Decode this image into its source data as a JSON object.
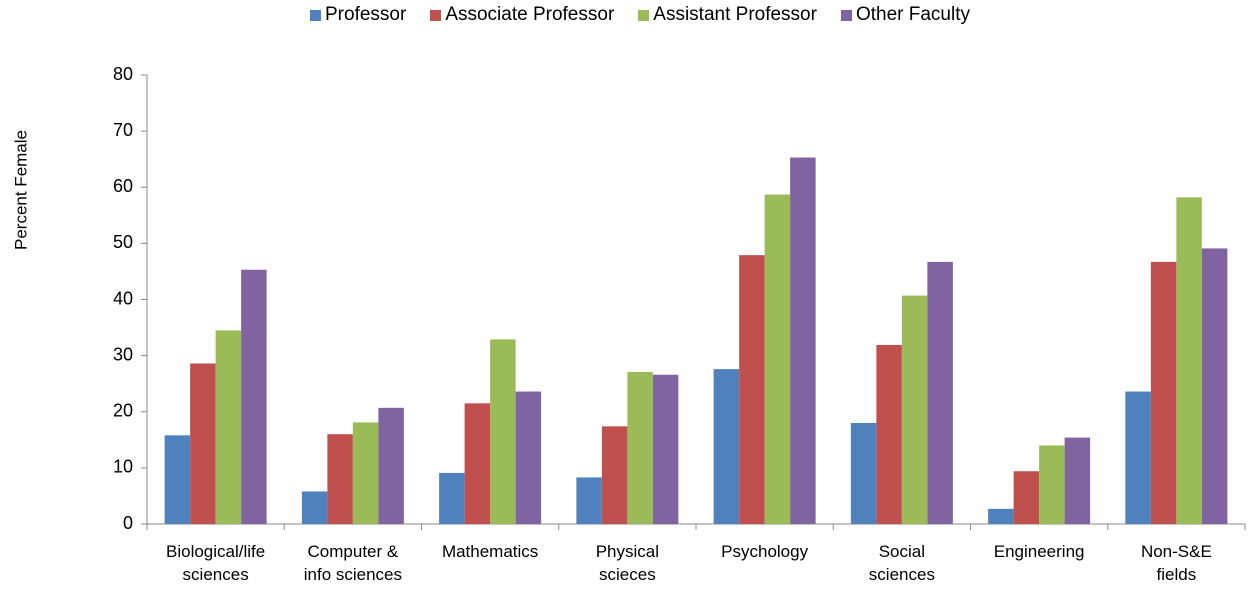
{
  "chart_data": {
    "type": "bar",
    "y_label": "Percent Female",
    "categories": [
      "Biological/life\nsciences",
      "Computer &\ninfo sciences",
      "Mathematics",
      "Physical\nscieces",
      "Psychology",
      "Social\nsciences",
      "Engineering",
      "Non-S&E\nfields"
    ],
    "series": [
      {
        "name": "Professor",
        "color": "#4f81bd",
        "values": [
          15.8,
          5.8,
          9.1,
          8.3,
          27.6,
          18.0,
          2.7,
          23.6
        ]
      },
      {
        "name": "Associate Professor",
        "color": "#c0504d",
        "values": [
          28.6,
          16.0,
          21.5,
          17.4,
          47.9,
          31.9,
          9.4,
          46.7
        ]
      },
      {
        "name": "Assistant Professor",
        "color": "#9bbb59",
        "values": [
          34.5,
          18.1,
          32.9,
          27.1,
          58.7,
          40.7,
          14.0,
          58.2
        ]
      },
      {
        "name": "Other Faculty",
        "color": "#8064a2",
        "values": [
          45.3,
          20.7,
          23.6,
          26.6,
          65.3,
          46.7,
          15.4,
          49.1
        ]
      }
    ],
    "ylim": [
      0,
      80
    ],
    "yticks": [
      0,
      10,
      20,
      30,
      40,
      50,
      60,
      70,
      80
    ],
    "grid": false,
    "legend": "top"
  }
}
